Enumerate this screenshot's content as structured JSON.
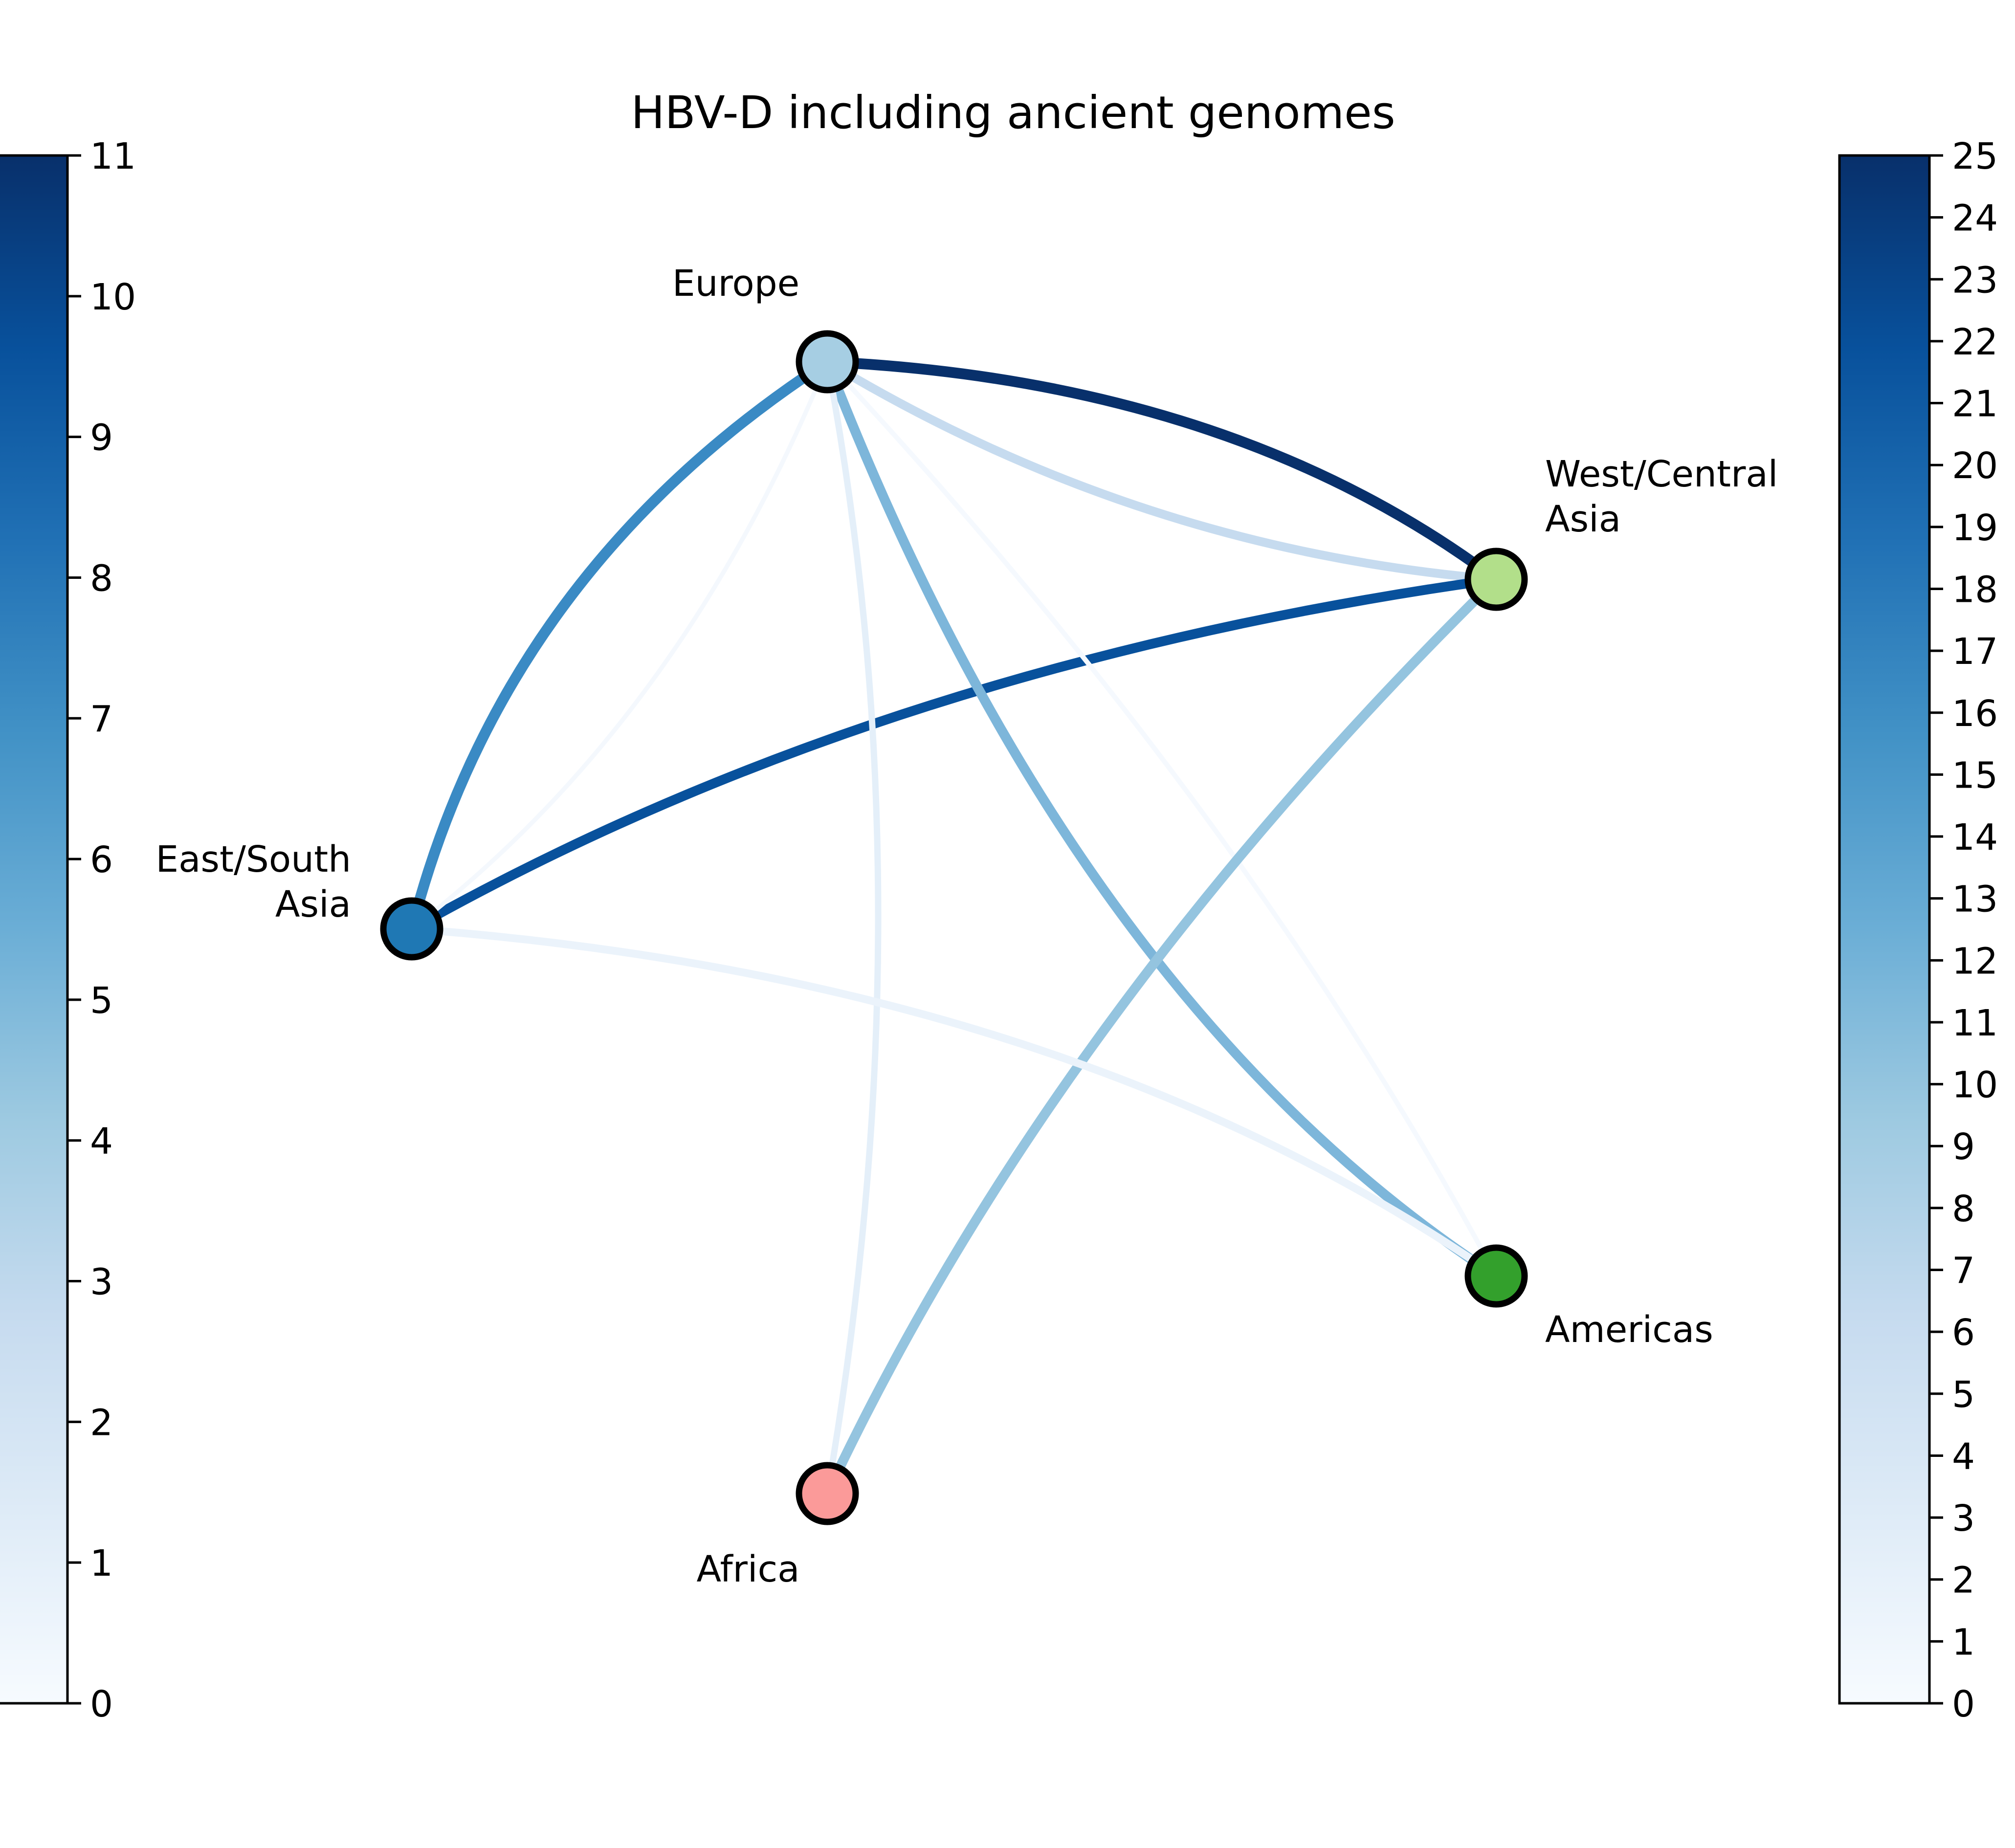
{
  "title": "HBV-D including ancient genomes",
  "nodes": [
    {
      "id": "europe",
      "label": [
        "Europe"
      ],
      "color": "#a6cee3"
    },
    {
      "id": "west_central_asia",
      "label": [
        "West/Central",
        "Asia"
      ],
      "color": "#b2df8a"
    },
    {
      "id": "east_south_asia",
      "label": [
        "East/South",
        "Asia"
      ],
      "color": "#1f78b4"
    },
    {
      "id": "americas",
      "label": [
        "Americas"
      ],
      "color": "#33a02c"
    },
    {
      "id": "africa",
      "label": [
        "Africa"
      ],
      "color": "#fb9a99"
    }
  ],
  "edges": [
    {
      "source": "europe",
      "target": "west_central_asia",
      "color": "#08306b"
    },
    {
      "source": "europe",
      "target": "west_central_asia",
      "color": "#c6dbef"
    },
    {
      "source": "east_south_asia",
      "target": "west_central_asia",
      "color": "#08519c"
    },
    {
      "source": "europe",
      "target": "east_south_asia",
      "color": "#3a8ac4"
    },
    {
      "source": "east_south_asia",
      "target": "europe",
      "color": "#f4f8fd"
    },
    {
      "source": "europe",
      "target": "americas",
      "color": "#7db6da"
    },
    {
      "source": "europe",
      "target": "americas",
      "color": "#f5f9fe"
    },
    {
      "source": "africa",
      "target": "europe",
      "color": "#e4eff9"
    },
    {
      "source": "africa",
      "target": "west_central_asia",
      "color": "#94c4df"
    },
    {
      "source": "east_south_asia",
      "target": "americas",
      "color": "#ebf3fb"
    }
  ],
  "colorbar_left": {
    "min": 0,
    "max": 11,
    "ticks": [
      "0",
      "1",
      "2",
      "3",
      "4",
      "5",
      "6",
      "7",
      "8",
      "9",
      "10",
      "11"
    ]
  },
  "colorbar_right": {
    "min": 0,
    "max": 25,
    "ticks": [
      "0",
      "1",
      "2",
      "3",
      "4",
      "5",
      "6",
      "7",
      "8",
      "9",
      "10",
      "11",
      "12",
      "13",
      "14",
      "15",
      "16",
      "17",
      "18",
      "19",
      "20",
      "21",
      "22",
      "23",
      "24",
      "25"
    ]
  },
  "colormap": [
    "#f7fbff",
    "#deebf7",
    "#c6dbef",
    "#9ecae1",
    "#6baed6",
    "#4292c6",
    "#2171b5",
    "#08519c",
    "#08306b"
  ]
}
